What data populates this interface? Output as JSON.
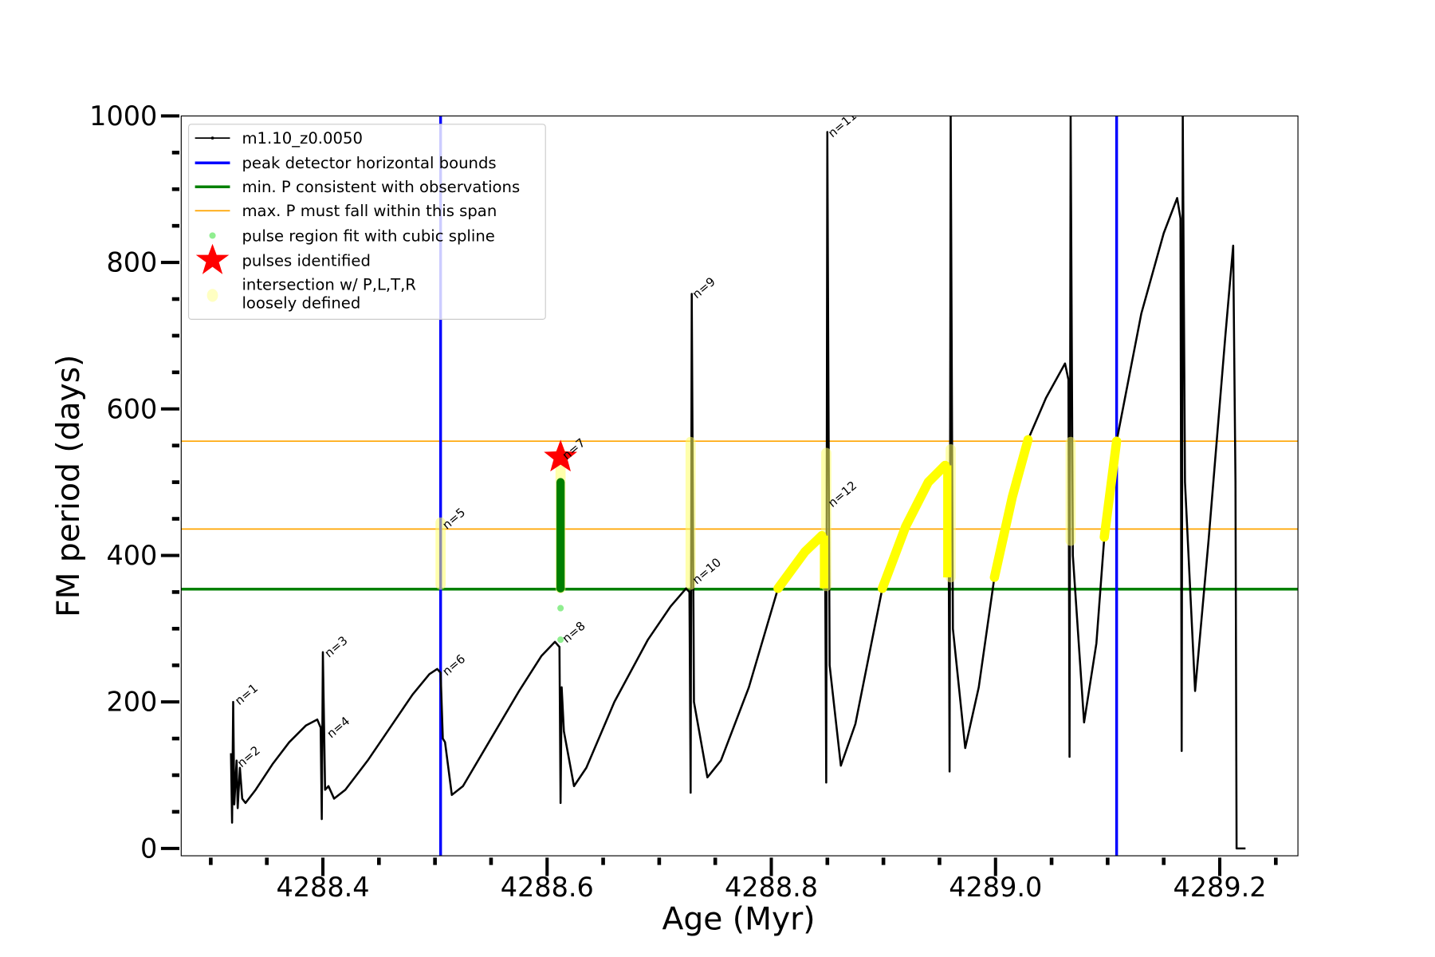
{
  "chart_data": {
    "type": "line",
    "title": "",
    "xlabel": "Age (Myr)",
    "ylabel": "FM period (days)",
    "xlim": [
      4288.274,
      4289.27
    ],
    "ylim": [
      0,
      1000
    ],
    "xticks": [
      4288.4,
      4288.6,
      4288.8,
      4289.0,
      4289.2
    ],
    "xtick_labels": [
      "4288.4",
      "4288.6",
      "4288.8",
      "4289.0",
      "4289.2"
    ],
    "yticks": [
      0,
      200,
      400,
      600,
      800,
      1000
    ],
    "ytick_labels": [
      "0",
      "200",
      "400",
      "600",
      "800",
      "1000"
    ],
    "legend_position": "top-left",
    "legend": [
      "m1.10_z0.0050",
      "peak detector horizontal bounds",
      "min. P consistent with observations",
      "max. P must fall within this span",
      "pulse region fit with cubic spline",
      "pulses identified",
      "intersection w/ P,L,T,R",
      "loosely defined"
    ],
    "colors": {
      "track": "#000000",
      "bounds": "#0000ff",
      "minP": "#008000",
      "maxP": "#ffa500",
      "spline": "#90ee90",
      "star": "#ff0000",
      "intersection": "#ffff00"
    },
    "series_name": "m1.10_z0.0050",
    "track": [
      [
        4288.318,
        130
      ],
      [
        4288.319,
        35
      ],
      [
        4288.32,
        200
      ],
      [
        4288.321,
        60
      ],
      [
        4288.323,
        120
      ],
      [
        4288.324,
        55
      ],
      [
        4288.326,
        110
      ],
      [
        4288.328,
        68
      ],
      [
        4288.331,
        62
      ],
      [
        4288.34,
        80
      ],
      [
        4288.355,
        115
      ],
      [
        4288.37,
        145
      ],
      [
        4288.385,
        168
      ],
      [
        4288.395,
        176
      ],
      [
        4288.398,
        165
      ],
      [
        4288.399,
        40
      ],
      [
        4288.4,
        268
      ],
      [
        4288.402,
        80
      ],
      [
        4288.405,
        85
      ],
      [
        4288.41,
        68
      ],
      [
        4288.42,
        80
      ],
      [
        4288.44,
        120
      ],
      [
        4288.46,
        165
      ],
      [
        4288.48,
        210
      ],
      [
        4288.495,
        238
      ],
      [
        4288.502,
        245
      ],
      [
        4288.505,
        240
      ],
      [
        4288.507,
        150
      ],
      [
        4288.509,
        145
      ],
      [
        4288.515,
        73
      ],
      [
        4288.525,
        85
      ],
      [
        4288.55,
        150
      ],
      [
        4288.575,
        215
      ],
      [
        4288.595,
        263
      ],
      [
        4288.607,
        282
      ],
      [
        4288.611,
        275
      ],
      [
        4288.612,
        62
      ],
      [
        4288.613,
        220
      ],
      [
        4288.615,
        160
      ],
      [
        4288.624,
        85
      ],
      [
        4288.635,
        110
      ],
      [
        4288.66,
        200
      ],
      [
        4288.69,
        285
      ],
      [
        4288.71,
        330
      ],
      [
        4288.724,
        355
      ],
      [
        4288.727,
        350
      ],
      [
        4288.728,
        76
      ],
      [
        4288.729,
        757
      ],
      [
        4288.731,
        200
      ],
      [
        4288.743,
        97
      ],
      [
        4288.755,
        120
      ],
      [
        4288.78,
        220
      ],
      [
        4288.806,
        355
      ],
      [
        4288.83,
        405
      ],
      [
        4288.845,
        427
      ],
      [
        4288.848,
        400
      ],
      [
        4288.849,
        90
      ],
      [
        4288.85,
        978
      ],
      [
        4288.852,
        250
      ],
      [
        4288.862,
        113
      ],
      [
        4288.875,
        170
      ],
      [
        4288.899,
        355
      ],
      [
        4288.92,
        440
      ],
      [
        4288.94,
        500
      ],
      [
        4288.955,
        523
      ],
      [
        4288.958,
        490
      ],
      [
        4288.959,
        105
      ],
      [
        4288.96,
        1000
      ],
      [
        4288.962,
        300
      ],
      [
        4288.973,
        137
      ],
      [
        4288.985,
        220
      ],
      [
        4288.999,
        370
      ],
      [
        4289.015,
        480
      ],
      [
        4289.029,
        558
      ],
      [
        4289.045,
        615
      ],
      [
        4289.062,
        662
      ],
      [
        4289.065,
        640
      ],
      [
        4289.066,
        125
      ],
      [
        4289.067,
        1000
      ],
      [
        4289.069,
        400
      ],
      [
        4289.079,
        172
      ],
      [
        4289.09,
        280
      ],
      [
        4289.097,
        425
      ],
      [
        4289.108,
        556
      ],
      [
        4289.13,
        730
      ],
      [
        4289.15,
        840
      ],
      [
        4289.162,
        888
      ],
      [
        4289.165,
        860
      ],
      [
        4289.166,
        133
      ],
      [
        4289.167,
        1000
      ],
      [
        4289.169,
        500
      ],
      [
        4289.178,
        215
      ],
      [
        4289.19,
        420
      ],
      [
        4289.205,
        700
      ],
      [
        4289.212,
        823
      ],
      [
        4289.214,
        500
      ],
      [
        4289.215,
        0
      ],
      [
        4289.223,
        0
      ]
    ],
    "peak_detector_bounds_x": [
      4288.505,
      4289.108
    ],
    "min_P": 354,
    "max_P_span": [
      436,
      556
    ],
    "intersection_rises": [
      [
        4288.806,
        4288.845
      ],
      [
        4288.899,
        4288.955
      ],
      [
        4288.999,
        4289.029
      ],
      [
        4289.097,
        4289.108
      ]
    ],
    "intersection_bands": [
      [
        4288.505,
        360,
        445
      ],
      [
        4288.612,
        355,
        540
      ],
      [
        4288.728,
        360,
        555
      ],
      [
        4288.849,
        358,
        540
      ],
      [
        4288.96,
        370,
        545
      ],
      [
        4289.067,
        420,
        555
      ]
    ],
    "spline_fit": {
      "x": 4288.612,
      "y_range": [
        355,
        500
      ],
      "extra_points": [
        [
          4288.612,
          328
        ],
        [
          4288.612,
          285
        ]
      ]
    },
    "pulses_identified": [
      [
        4288.612,
        534
      ]
    ],
    "annotations": [
      {
        "label": "n=1",
        "x": 4288.323,
        "y": 200
      },
      {
        "label": "n=2",
        "x": 4288.325,
        "y": 115
      },
      {
        "label": "n=3",
        "x": 4288.403,
        "y": 265
      },
      {
        "label": "n=4",
        "x": 4288.405,
        "y": 155
      },
      {
        "label": "n=5",
        "x": 4288.508,
        "y": 440
      },
      {
        "label": "n=6",
        "x": 4288.508,
        "y": 240
      },
      {
        "label": "n=7",
        "x": 4288.615,
        "y": 535
      },
      {
        "label": "n=8",
        "x": 4288.615,
        "y": 285
      },
      {
        "label": "n=9",
        "x": 4288.731,
        "y": 755
      },
      {
        "label": "n=10",
        "x": 4288.731,
        "y": 365
      },
      {
        "label": "n=11",
        "x": 4288.852,
        "y": 975
      },
      {
        "label": "n=12",
        "x": 4288.852,
        "y": 470
      }
    ]
  }
}
